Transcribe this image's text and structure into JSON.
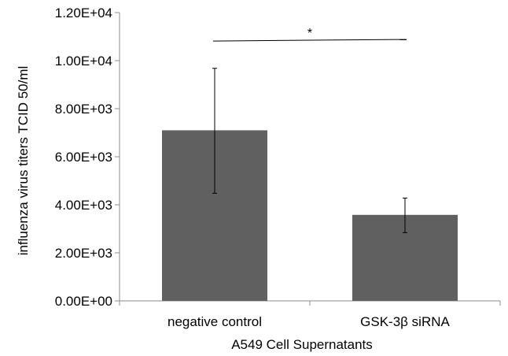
{
  "chart_data": {
    "type": "bar",
    "categories": [
      "negative control",
      "GSK-3β siRNA"
    ],
    "values": [
      7100,
      3580
    ],
    "error_low": [
      4480,
      2840
    ],
    "error_high": [
      9680,
      4280
    ],
    "bar_color": "#606060",
    "xlabel": "A549 Cell Supernatants",
    "ylabel": "influenza virus titers TCID 50/ml",
    "ylim": [
      0,
      12000
    ],
    "y_ticks": [
      0,
      2000,
      4000,
      6000,
      8000,
      10000,
      12000
    ],
    "y_tick_labels": [
      "0.00E+00",
      "2.00E+03",
      "4.00E+03",
      "6.00E+03",
      "8.00E+03",
      "1.00E+04",
      "1.20E+04"
    ],
    "significance": {
      "label": "*",
      "between": [
        0,
        1
      ],
      "level": 10850
    },
    "grid": false,
    "legend": "none"
  }
}
